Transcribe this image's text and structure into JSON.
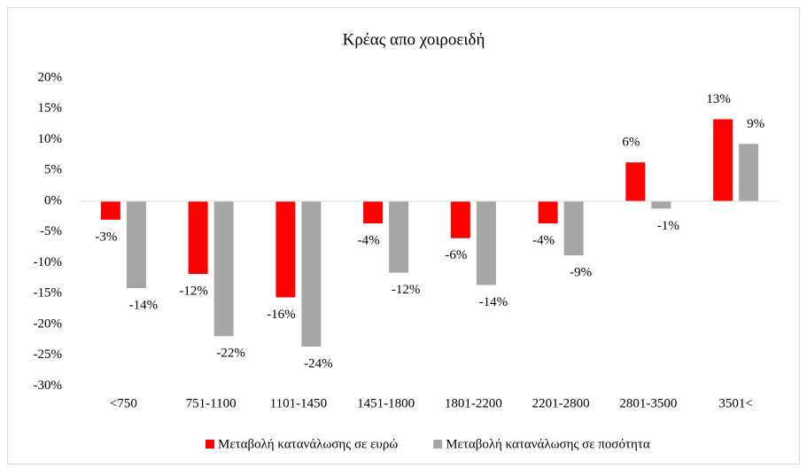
{
  "chart_data": {
    "type": "bar",
    "title": "Κρέας απο χοιροειδή",
    "categories": [
      "<750",
      "751-1100",
      "1101-1450",
      "1451-1800",
      "1801-2200",
      "2201-2800",
      "2801-3500",
      "3501<"
    ],
    "series": [
      {
        "name": "Μεταβολή κατανάλωσης σε ευρώ",
        "color": "#ff0000",
        "values": [
          -3,
          -11.8,
          -15.6,
          -3.6,
          -6.0,
          -3.6,
          6.3,
          13.3
        ],
        "value_labels": [
          "-3%",
          "-12%",
          "-16%",
          "-4%",
          "-6%",
          "-4%",
          "6%",
          "13%"
        ]
      },
      {
        "name": "Μεταβολή κατανάλωσης σε ποσότητα",
        "color": "#a6a6a6",
        "values": [
          -14.1,
          -21.9,
          -23.6,
          -11.6,
          -13.6,
          -8.8,
          -1.2,
          9.3
        ],
        "value_labels": [
          "-14%",
          "-22%",
          "-24%",
          "-12%",
          "-14%",
          "-9%",
          "-1%",
          "9%"
        ]
      }
    ],
    "ylim": [
      -30,
      20
    ],
    "yticks": [
      {
        "value": -30,
        "label": "-30%"
      },
      {
        "value": -25,
        "label": "-25%"
      },
      {
        "value": -20,
        "label": "-20%"
      },
      {
        "value": -15,
        "label": "-15%"
      },
      {
        "value": -10,
        "label": "-10%"
      },
      {
        "value": -5,
        "label": "-5%"
      },
      {
        "value": 0,
        "label": "0%"
      },
      {
        "value": 5,
        "label": "5%"
      },
      {
        "value": 10,
        "label": "10%"
      },
      {
        "value": 15,
        "label": "15%"
      },
      {
        "value": 20,
        "label": "20%"
      }
    ],
    "grid": false,
    "legend": "bottom"
  }
}
